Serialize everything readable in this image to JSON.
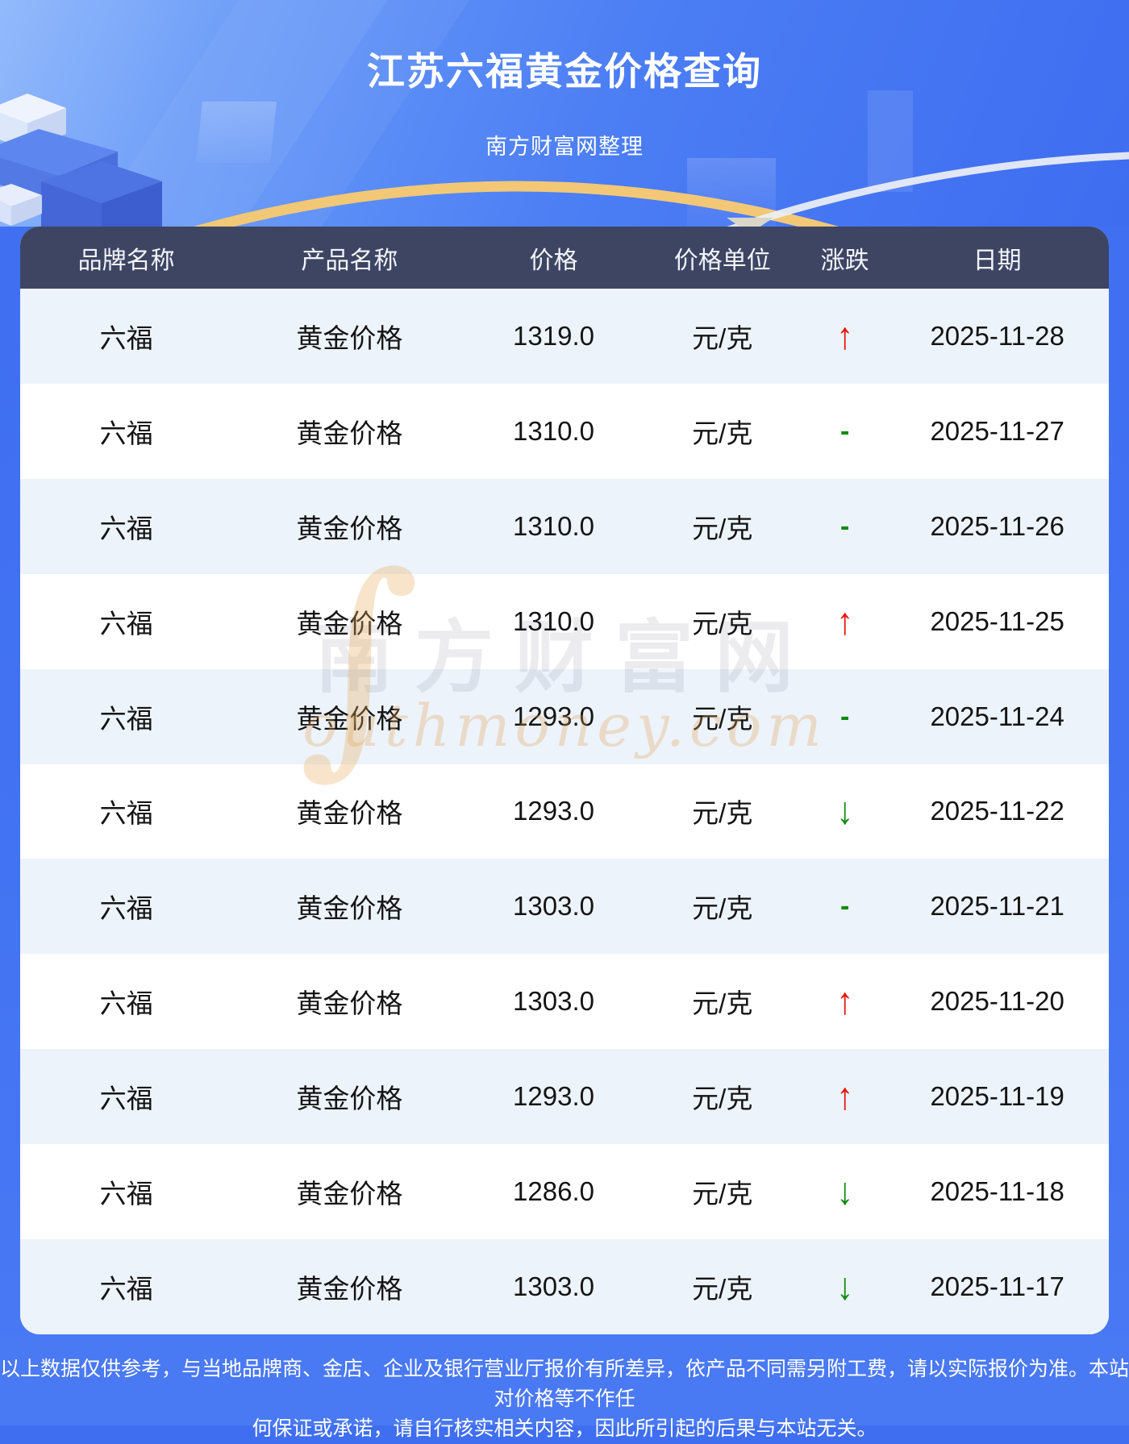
{
  "header": {
    "title": "江苏六福黄金价格查询",
    "subtitle": "南方财富网整理"
  },
  "table": {
    "columns": [
      "品牌名称",
      "产品名称",
      "价格",
      "价格单位",
      "涨跌",
      "日期"
    ],
    "change_symbols": {
      "up": "↑",
      "down": "↓",
      "flat": "-"
    },
    "rows": [
      {
        "brand": "六福",
        "product": "黄金价格",
        "price": "1319.0",
        "unit": "元/克",
        "change": "up",
        "date": "2025-11-28"
      },
      {
        "brand": "六福",
        "product": "黄金价格",
        "price": "1310.0",
        "unit": "元/克",
        "change": "flat",
        "date": "2025-11-27"
      },
      {
        "brand": "六福",
        "product": "黄金价格",
        "price": "1310.0",
        "unit": "元/克",
        "change": "flat",
        "date": "2025-11-26"
      },
      {
        "brand": "六福",
        "product": "黄金价格",
        "price": "1310.0",
        "unit": "元/克",
        "change": "up",
        "date": "2025-11-25"
      },
      {
        "brand": "六福",
        "product": "黄金价格",
        "price": "1293.0",
        "unit": "元/克",
        "change": "flat",
        "date": "2025-11-24"
      },
      {
        "brand": "六福",
        "product": "黄金价格",
        "price": "1293.0",
        "unit": "元/克",
        "change": "down",
        "date": "2025-11-22"
      },
      {
        "brand": "六福",
        "product": "黄金价格",
        "price": "1303.0",
        "unit": "元/克",
        "change": "flat",
        "date": "2025-11-21"
      },
      {
        "brand": "六福",
        "product": "黄金价格",
        "price": "1303.0",
        "unit": "元/克",
        "change": "up",
        "date": "2025-11-20"
      },
      {
        "brand": "六福",
        "product": "黄金价格",
        "price": "1293.0",
        "unit": "元/克",
        "change": "up",
        "date": "2025-11-19"
      },
      {
        "brand": "六福",
        "product": "黄金价格",
        "price": "1286.0",
        "unit": "元/克",
        "change": "down",
        "date": "2025-11-18"
      },
      {
        "brand": "六福",
        "product": "黄金价格",
        "price": "1303.0",
        "unit": "元/克",
        "change": "down",
        "date": "2025-11-17"
      }
    ]
  },
  "watermark": {
    "swash": "∫",
    "cn": "南方财富网",
    "en": "outhmoney.com"
  },
  "footer": {
    "line1": "以上数据仅供参考，与当地品牌商、金店、企业及银行营业厅报价有所差异，依产品不同需另附工费，请以实际报价为准。本站对价格等不作任",
    "line2": "何保证或承诺，请自行核实相关内容，因此所引起的后果与本站无关。"
  },
  "colors": {
    "up": "#e8150b",
    "down": "#0f8b0f",
    "header_bg": "#3d4563",
    "row_alt": "#edf3fb",
    "accent_blue": "#4273f2",
    "gold_arc": "#f2c876"
  }
}
